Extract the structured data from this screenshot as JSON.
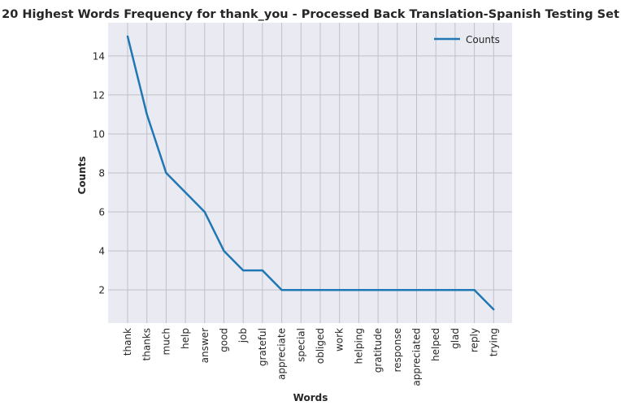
{
  "chart_data": {
    "type": "line",
    "title": "20 Highest Words Frequency for thank_you - Processed Back Translation-Spanish Testing Set",
    "xlabel": "Words",
    "ylabel": "Counts",
    "categories": [
      "thank",
      "thanks",
      "much",
      "help",
      "answer",
      "good",
      "job",
      "grateful",
      "appreciate",
      "special",
      "obliged",
      "work",
      "helping",
      "gratitude",
      "response",
      "appreciated",
      "helped",
      "glad",
      "reply",
      "trying"
    ],
    "series": [
      {
        "name": "Counts",
        "values": [
          15,
          11,
          8,
          7,
          6,
          4,
          3,
          3,
          2,
          2,
          2,
          2,
          2,
          2,
          2,
          2,
          2,
          2,
          2,
          1
        ],
        "color": "#1f77b4"
      }
    ],
    "ylim": [
      0.3,
      15.7
    ],
    "yticks": [
      2,
      4,
      6,
      8,
      10,
      12,
      14
    ],
    "grid": true,
    "legend_position": "top-right",
    "colors": {
      "background": "#eaeaf2",
      "grid": "#c0c0c8",
      "line": "#1f77b4"
    }
  }
}
